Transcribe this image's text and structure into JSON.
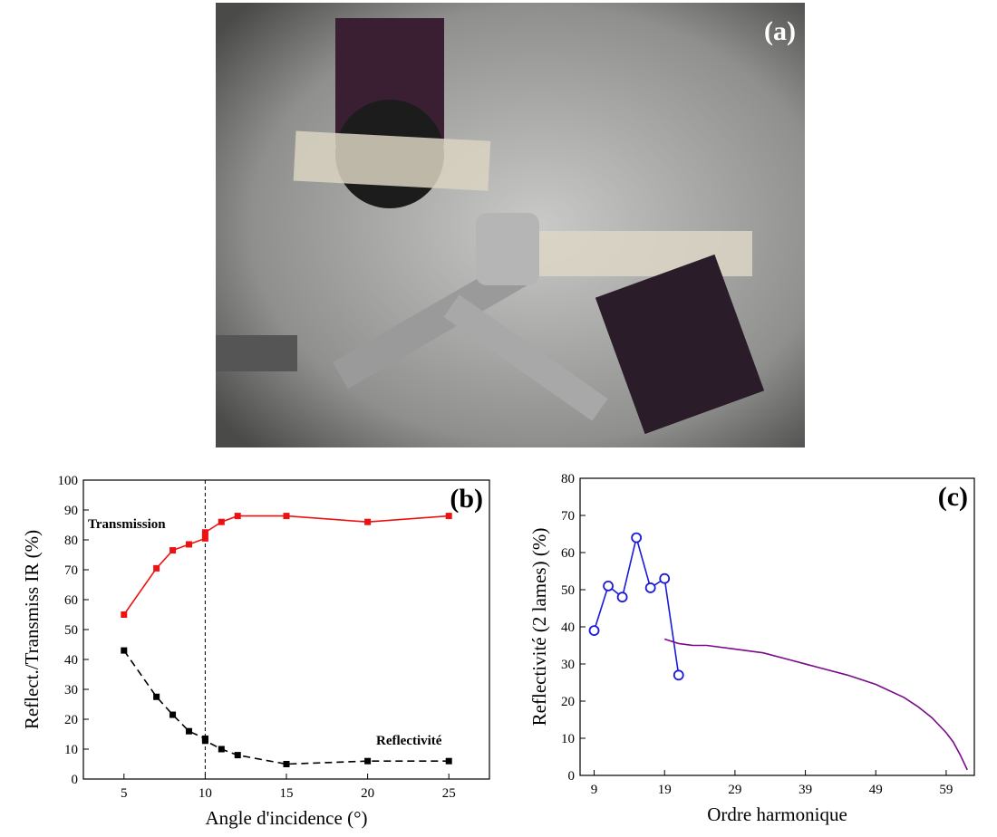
{
  "photo": {
    "label": "(a)"
  },
  "chart_data": [
    {
      "type": "line",
      "panel_label": "(b)",
      "x_label": "Angle d'incidence (°)",
      "y_label": "Reflect./Transmiss IR (%)",
      "xlim": [
        2.5,
        27.5
      ],
      "xticks": [
        5,
        10,
        15,
        20,
        25
      ],
      "ylim": [
        0,
        100
      ],
      "yticks": [
        0,
        10,
        20,
        30,
        40,
        50,
        60,
        70,
        80,
        90,
        100
      ],
      "vline": 10,
      "annotations": [
        "Transmission",
        "Reflectivité"
      ],
      "series": [
        {
          "name": "Transmission",
          "color": "#ee1111",
          "marker": "square",
          "dash": false,
          "x": [
            5,
            7,
            8,
            9,
            10,
            10,
            11,
            12,
            15,
            20,
            25
          ],
          "values": [
            55,
            70.5,
            76.5,
            78.5,
            80.5,
            82.5,
            86,
            88,
            88,
            86,
            88
          ]
        },
        {
          "name": "Reflectivité",
          "color": "#000000",
          "marker": "square",
          "dash": true,
          "x": [
            5,
            7,
            8,
            9,
            10,
            10,
            11,
            12,
            15,
            20,
            25
          ],
          "values": [
            43,
            27.5,
            21.5,
            16,
            13.5,
            12.8,
            10,
            8,
            5,
            6,
            6
          ]
        }
      ]
    },
    {
      "type": "line",
      "panel_label": "(c)",
      "x_label": "Ordre harmonique",
      "y_label": "Reflectivité (2 lames) (%)",
      "xlim": [
        7,
        63
      ],
      "xticks": [
        9,
        19,
        29,
        39,
        49,
        59
      ],
      "ylim": [
        0,
        80
      ],
      "yticks": [
        0,
        10,
        20,
        30,
        40,
        50,
        60,
        70,
        80
      ],
      "series": [
        {
          "color": "#1a1adc",
          "marker": "circle-open",
          "dash": false,
          "x": [
            9,
            11,
            13,
            15,
            17,
            19,
            21
          ],
          "values": [
            39,
            51,
            48,
            64,
            50.5,
            53,
            27
          ]
        },
        {
          "color": "#7a0a8a",
          "marker": "none",
          "dash": false,
          "x": [
            19,
            21,
            23,
            25,
            29,
            33,
            37,
            41,
            45,
            49,
            53,
            55,
            57,
            59,
            60,
            61,
            62
          ],
          "values": [
            36.7,
            35.5,
            35,
            35,
            34,
            33,
            31,
            29,
            27,
            24.5,
            21,
            18.5,
            15.5,
            11.5,
            9,
            5.5,
            1.5
          ]
        }
      ]
    }
  ]
}
